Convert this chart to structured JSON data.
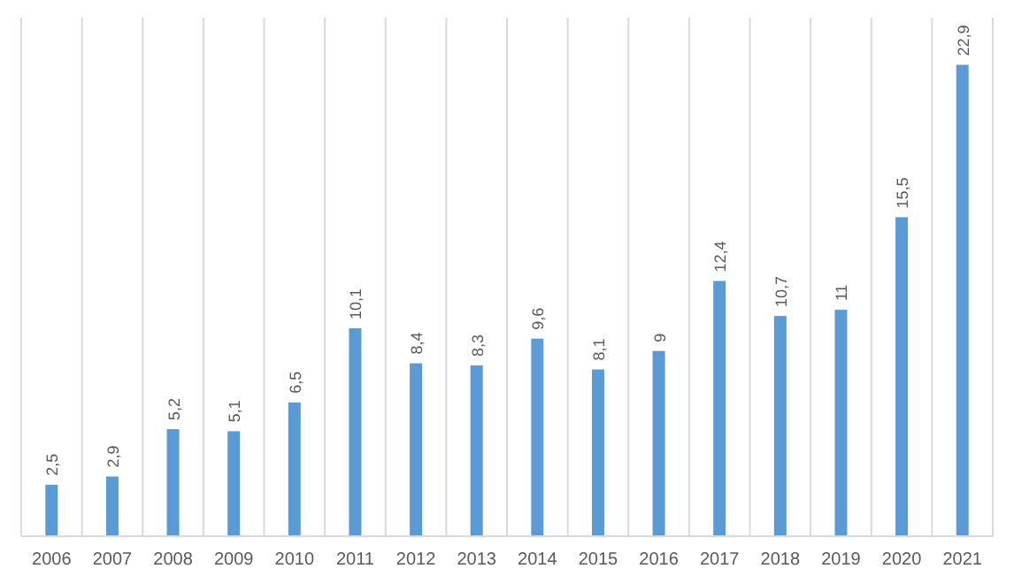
{
  "chart_data": {
    "type": "bar",
    "categories": [
      "2006",
      "2007",
      "2008",
      "2009",
      "2010",
      "2011",
      "2012",
      "2013",
      "2014",
      "2015",
      "2016",
      "2017",
      "2018",
      "2019",
      "2020",
      "2021"
    ],
    "values": [
      2.5,
      2.9,
      5.2,
      5.1,
      6.5,
      10.1,
      8.4,
      8.3,
      9.6,
      8.1,
      9,
      12.4,
      10.7,
      11,
      15.5,
      22.9
    ],
    "value_labels": [
      "2,5",
      "2,9",
      "5,2",
      "5,1",
      "6,5",
      "10,1",
      "8,4",
      "8,3",
      "9,6",
      "8,1",
      "9",
      "12,4",
      "10,7",
      "11",
      "15,5",
      "22,9"
    ],
    "color": "#5b9bd5",
    "grid": "x"
  }
}
